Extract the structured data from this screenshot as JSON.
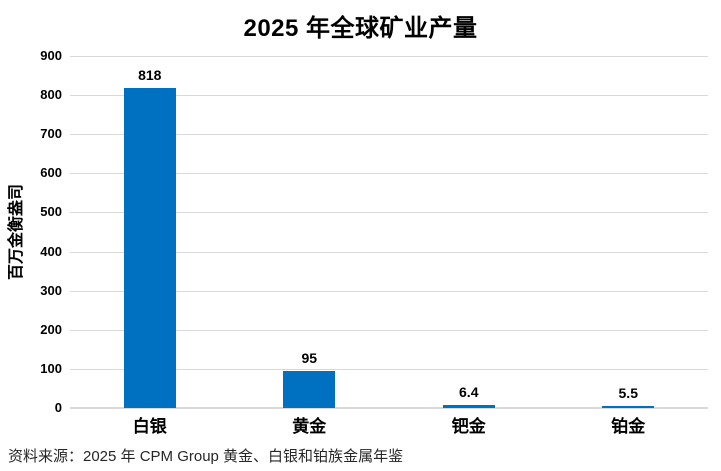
{
  "chart_data": {
    "type": "bar",
    "title": "2025 年全球矿业产量",
    "categories": [
      "白银",
      "黄金",
      "钯金",
      "铂金"
    ],
    "values": [
      818,
      95,
      6.4,
      5.5
    ],
    "value_labels": [
      "818",
      "95",
      "6.4",
      "5.5"
    ],
    "xlabel": "",
    "ylabel": "百万金衡盎司",
    "ylim": [
      0,
      900
    ],
    "yticks": [
      0,
      100,
      200,
      300,
      400,
      500,
      600,
      700,
      800,
      900
    ],
    "grid": "horizontal",
    "legend": "none",
    "bar_color": "#0070C0",
    "gridline_color": "#D9D9D9",
    "text_color": "#000000"
  },
  "source_note": "资料来源：2025 年 CPM Group 黄金、白银和铂族金属年鉴"
}
